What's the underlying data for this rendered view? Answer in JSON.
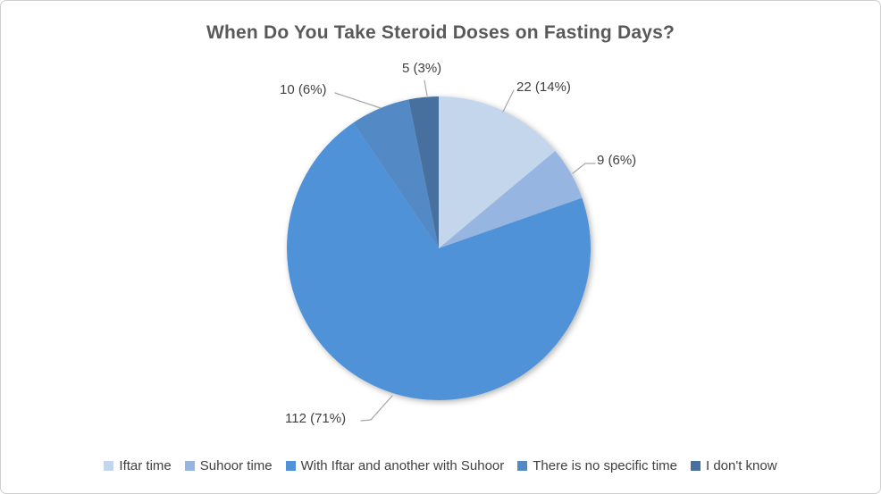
{
  "chart_data": {
    "type": "pie",
    "title": "When Do You Take Steroid Doses on Fasting Days?",
    "legend_position": "bottom",
    "start_angle_deg": 0,
    "direction": "clockwise",
    "slices": [
      {
        "name": "Iftar time",
        "count": 22,
        "percent": 14,
        "label": "22 (14%)",
        "color": "#c4d6ec"
      },
      {
        "name": "Suhoor time",
        "count": 9,
        "percent": 6,
        "label": "9 (6%)",
        "color": "#96b6e1"
      },
      {
        "name": "With Iftar and another with Suhoor",
        "count": 112,
        "percent": 71,
        "label": "112 (71%)",
        "color": "#4f92d8"
      },
      {
        "name": "There is no specific time",
        "count": 10,
        "percent": 6,
        "label": "10 (6%)",
        "color": "#5389c4"
      },
      {
        "name": "I don't know",
        "count": 5,
        "percent": 3,
        "label": "5 (3%)",
        "color": "#47709f"
      }
    ]
  }
}
